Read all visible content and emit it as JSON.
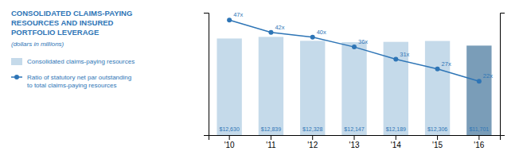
{
  "chart_data": {
    "type": "bar",
    "title": "CONSOLIDATED CLAIMS-PAYING\nRESOURCES AND INSURED\nPORTFOLIO LEVERAGE",
    "subtitle": "(dollars in millions)",
    "categories": [
      "'10",
      "'11",
      "'12",
      "'13",
      "'14",
      "'15",
      "'16"
    ],
    "series": [
      {
        "name": "Consolidated claims-paying resources",
        "type": "bar",
        "colors": [
          "#c5daea",
          "#c5daea",
          "#c5daea",
          "#c5daea",
          "#c5daea",
          "#c5daea",
          "#7a9db8"
        ],
        "values": [
          12630,
          12839,
          12328,
          12147,
          12189,
          12306,
          11701
        ],
        "value_labels": [
          "$12,630",
          "$12,839",
          "$12,328",
          "$12,147",
          "$12,189",
          "$12,306",
          "$11,701"
        ]
      },
      {
        "name": "Ratio of statutory net par outstanding\nto total claims-paying resources",
        "type": "line",
        "axis": "y2",
        "color": "#2e75b6",
        "marker": "circle",
        "values": [
          47,
          42,
          40,
          36,
          31,
          27,
          22
        ],
        "value_labels": [
          "47x",
          "42x",
          "40x",
          "36x",
          "31x",
          "27x",
          "22x"
        ]
      }
    ],
    "ylim": [
      0,
      16000
    ],
    "y2lim": [
      0,
      50
    ],
    "data_labels": true,
    "tick_labels": "x",
    "legend": "left",
    "grid": false
  }
}
